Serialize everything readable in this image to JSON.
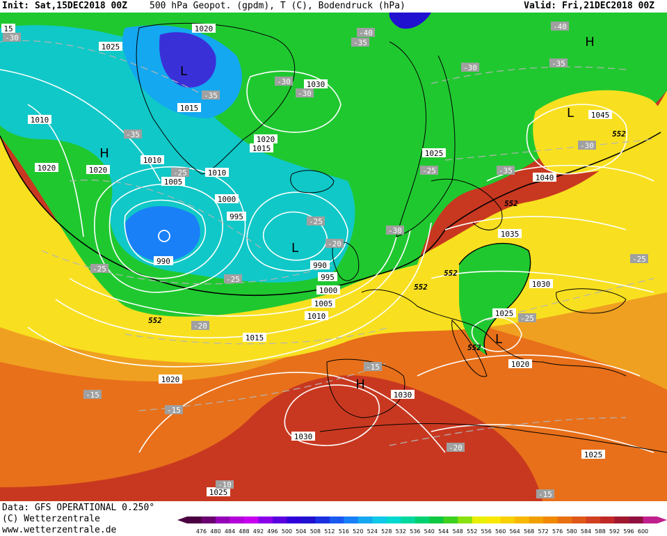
{
  "header": {
    "init": "Init: Sat,15DEC2018 00Z",
    "title": "500 hPa Geopot. (gpdm), T (C), Bodendruck (hPa)",
    "valid": "Valid: Fri,21DEC2018 00Z"
  },
  "footer": {
    "data_source": "Data: GFS OPERATIONAL 0.250°",
    "copyright": "(C) Wetterzentrale",
    "website": "www.wetterzentrale.de"
  },
  "map": {
    "pressure_labels": [
      {
        "text": "1020",
        "id": "p1"
      },
      {
        "text": "1025",
        "id": "p2"
      },
      {
        "text": "1015",
        "id": "p3"
      },
      {
        "text": "1010",
        "id": "p4"
      },
      {
        "text": "1020",
        "id": "p5"
      },
      {
        "text": "1020",
        "id": "p6"
      },
      {
        "text": "1005",
        "id": "p7"
      },
      {
        "text": "1010",
        "id": "p8"
      },
      {
        "text": "1010",
        "id": "p9"
      },
      {
        "text": "1000",
        "id": "p10"
      },
      {
        "text": "995",
        "id": "p11"
      },
      {
        "text": "990",
        "id": "p12"
      },
      {
        "text": "990",
        "id": "p13"
      },
      {
        "text": "995",
        "id": "p14"
      },
      {
        "text": "1000",
        "id": "p15"
      },
      {
        "text": "1005",
        "id": "p16"
      },
      {
        "text": "1010",
        "id": "p17"
      },
      {
        "text": "1015",
        "id": "p18"
      },
      {
        "text": "1020",
        "id": "p19"
      },
      {
        "text": "1030",
        "id": "p20"
      },
      {
        "text": "1030",
        "id": "p21"
      },
      {
        "text": "1020",
        "id": "p22"
      },
      {
        "text": "1015",
        "id": "p23"
      },
      {
        "text": "1025",
        "id": "p24"
      },
      {
        "text": "1045",
        "id": "p25"
      },
      {
        "text": "1040",
        "id": "p26"
      },
      {
        "text": "1035",
        "id": "p27"
      },
      {
        "text": "1030",
        "id": "p28"
      },
      {
        "text": "1025",
        "id": "p29"
      },
      {
        "text": "1020",
        "id": "p30"
      },
      {
        "text": "1025",
        "id": "p31"
      },
      {
        "text": "1030",
        "id": "p32"
      },
      {
        "text": "1025",
        "id": "p33"
      }
    ],
    "temp_labels": [
      {
        "text": "-30"
      },
      {
        "text": "-35"
      },
      {
        "text": "-30"
      },
      {
        "text": "-35"
      },
      {
        "text": "-40"
      },
      {
        "text": "-35"
      },
      {
        "text": "-30"
      },
      {
        "text": "-40"
      },
      {
        "text": "-35"
      },
      {
        "text": "-30"
      },
      {
        "text": "-30"
      },
      {
        "text": "-25"
      },
      {
        "text": "-25"
      },
      {
        "text": "-35"
      },
      {
        "text": "-25"
      },
      {
        "text": "-20"
      },
      {
        "text": "-30"
      },
      {
        "text": "-25"
      },
      {
        "text": "-25"
      },
      {
        "text": "-20"
      },
      {
        "text": "-25"
      },
      {
        "text": "-15"
      },
      {
        "text": "-15"
      },
      {
        "text": "-20"
      },
      {
        "text": "-15"
      },
      {
        "text": "-25"
      },
      {
        "text": "15"
      },
      {
        "text": "-15"
      },
      {
        "text": "-10"
      }
    ],
    "geopot_labels": [
      {
        "text": "552"
      },
      {
        "text": "552"
      },
      {
        "text": "552"
      },
      {
        "text": "552"
      },
      {
        "text": "552"
      },
      {
        "text": "552"
      }
    ],
    "pressure_centers": [
      {
        "text": "H"
      },
      {
        "text": "L"
      },
      {
        "text": "L"
      },
      {
        "text": "H"
      },
      {
        "text": "L"
      },
      {
        "text": "H"
      },
      {
        "text": "L"
      }
    ]
  },
  "scale": {
    "values": [
      "476",
      "480",
      "484",
      "488",
      "492",
      "496",
      "500",
      "504",
      "508",
      "512",
      "516",
      "520",
      "524",
      "528",
      "532",
      "536",
      "540",
      "544",
      "548",
      "552",
      "556",
      "560",
      "564",
      "568",
      "572",
      "576",
      "580",
      "584",
      "588",
      "592",
      "596",
      "600"
    ],
    "colors": [
      "#4a0040",
      "#6a0070",
      "#9400b8",
      "#b400d8",
      "#c800f0",
      "#8a00e8",
      "#5a00e0",
      "#3000d8",
      "#2010d0",
      "#1a30e0",
      "#1a58f0",
      "#1a80f8",
      "#14a8f0",
      "#10c8e8",
      "#00d8d0",
      "#00d8a0",
      "#00d070",
      "#10c840",
      "#40d020",
      "#88e010",
      "#e8f000",
      "#f8e800",
      "#f8d000",
      "#f8b800",
      "#f0a000",
      "#f08800",
      "#e87010",
      "#e05818",
      "#d04020",
      "#c02828",
      "#a01830",
      "#901040",
      "#c0208c"
    ]
  }
}
